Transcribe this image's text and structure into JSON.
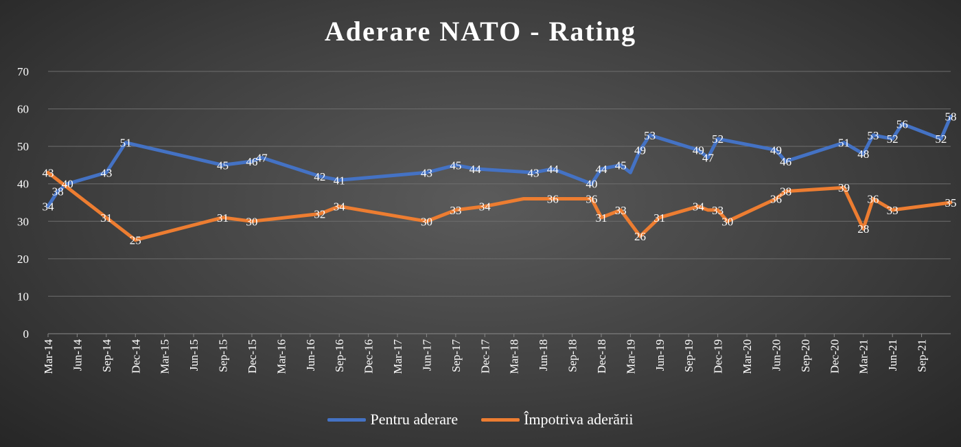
{
  "chart_data": {
    "type": "line",
    "title": "Aderare NATO - Rating",
    "xlabel": "",
    "ylabel": "",
    "ylim": [
      0,
      70
    ],
    "yticks": [
      0,
      10,
      20,
      30,
      40,
      50,
      60,
      70
    ],
    "grid": true,
    "legend_position": "bottom",
    "x_tick_labels": [
      "Mar-14",
      "Jun-14",
      "Sep-14",
      "Dec-14",
      "Mar-15",
      "Jun-15",
      "Sep-15",
      "Dec-15",
      "Mar-16",
      "Jun-16",
      "Sep-16",
      "Dec-16",
      "Mar-17",
      "Jun-17",
      "Sep-17",
      "Dec-17",
      "Mar-18",
      "Jun-18",
      "Sep-18",
      "Dec-18",
      "Mar-19",
      "Jun-19",
      "Sep-19",
      "Dec-19",
      "Mar-20",
      "Jun-20",
      "Sep-20",
      "Dec-20",
      "Mar-21",
      "Jun-21",
      "Sep-21"
    ],
    "x_range": [
      "2014-03",
      "2021-12"
    ],
    "series": [
      {
        "name": "Pentru aderare",
        "color": "#4472c4",
        "points": [
          {
            "x": "2014-03",
            "y": 34,
            "label": "34"
          },
          {
            "x": "2014-04",
            "y": 38,
            "label": "38"
          },
          {
            "x": "2014-05",
            "y": 40,
            "label": "40"
          },
          {
            "x": "2014-09",
            "y": 43,
            "label": "43"
          },
          {
            "x": "2014-11",
            "y": 51,
            "label": "51"
          },
          {
            "x": "2015-09",
            "y": 45,
            "label": "45"
          },
          {
            "x": "2015-12",
            "y": 46,
            "label": "46"
          },
          {
            "x": "2016-01",
            "y": 47,
            "label": "47"
          },
          {
            "x": "2016-07",
            "y": 42,
            "label": "42"
          },
          {
            "x": "2016-09",
            "y": 41,
            "label": "41"
          },
          {
            "x": "2017-06",
            "y": 43,
            "label": "43"
          },
          {
            "x": "2017-09",
            "y": 45,
            "label": "45"
          },
          {
            "x": "2017-11",
            "y": 44,
            "label": "44"
          },
          {
            "x": "2018-05",
            "y": 43,
            "label": "43"
          },
          {
            "x": "2018-07",
            "y": 44,
            "label": "44"
          },
          {
            "x": "2018-11",
            "y": 40,
            "label": "40"
          },
          {
            "x": "2018-12",
            "y": 44,
            "label": "44"
          },
          {
            "x": "2019-02",
            "y": 45,
            "label": "45"
          },
          {
            "x": "2019-03",
            "y": 43,
            "label": ""
          },
          {
            "x": "2019-04",
            "y": 49,
            "label": "49"
          },
          {
            "x": "2019-05",
            "y": 53,
            "label": "53"
          },
          {
            "x": "2019-10",
            "y": 49,
            "label": "49"
          },
          {
            "x": "2019-11",
            "y": 47,
            "label": "47"
          },
          {
            "x": "2019-12",
            "y": 52,
            "label": "52"
          },
          {
            "x": "2020-06",
            "y": 49,
            "label": "49"
          },
          {
            "x": "2020-07",
            "y": 46,
            "label": "46"
          },
          {
            "x": "2021-01",
            "y": 51,
            "label": "51"
          },
          {
            "x": "2021-03",
            "y": 48,
            "label": "48"
          },
          {
            "x": "2021-04",
            "y": 53,
            "label": "53"
          },
          {
            "x": "2021-06",
            "y": 52,
            "label": "52"
          },
          {
            "x": "2021-07",
            "y": 56,
            "label": "56"
          },
          {
            "x": "2021-11",
            "y": 52,
            "label": "52"
          },
          {
            "x": "2021-12",
            "y": 58,
            "label": "58"
          }
        ]
      },
      {
        "name": "Împotriva aderării",
        "color": "#ed7d31",
        "points": [
          {
            "x": "2014-03",
            "y": 43,
            "label": "43"
          },
          {
            "x": "2014-09",
            "y": 31,
            "label": "31"
          },
          {
            "x": "2014-12",
            "y": 25,
            "label": "25"
          },
          {
            "x": "2015-09",
            "y": 31,
            "label": "31"
          },
          {
            "x": "2015-12",
            "y": 30,
            "label": "30"
          },
          {
            "x": "2016-07",
            "y": 32,
            "label": "32"
          },
          {
            "x": "2016-09",
            "y": 34,
            "label": "34"
          },
          {
            "x": "2017-06",
            "y": 30,
            "label": "30"
          },
          {
            "x": "2017-09",
            "y": 33,
            "label": "33"
          },
          {
            "x": "2017-12",
            "y": 34,
            "label": "34"
          },
          {
            "x": "2018-04",
            "y": 36,
            "label": ""
          },
          {
            "x": "2018-07",
            "y": 36,
            "label": "36"
          },
          {
            "x": "2018-11",
            "y": 36,
            "label": "36"
          },
          {
            "x": "2018-12",
            "y": 31,
            "label": "31"
          },
          {
            "x": "2019-02",
            "y": 33,
            "label": "33"
          },
          {
            "x": "2019-04",
            "y": 26,
            "label": "26"
          },
          {
            "x": "2019-06",
            "y": 31,
            "label": "31"
          },
          {
            "x": "2019-10",
            "y": 34,
            "label": "34"
          },
          {
            "x": "2019-11",
            "y": 33,
            "label": ""
          },
          {
            "x": "2019-12",
            "y": 33,
            "label": "33"
          },
          {
            "x": "2020-01",
            "y": 30,
            "label": "30"
          },
          {
            "x": "2020-06",
            "y": 36,
            "label": "36"
          },
          {
            "x": "2020-07",
            "y": 38,
            "label": "38"
          },
          {
            "x": "2021-01",
            "y": 39,
            "label": "39"
          },
          {
            "x": "2021-03",
            "y": 28,
            "label": "28"
          },
          {
            "x": "2021-04",
            "y": 36,
            "label": "36"
          },
          {
            "x": "2021-06",
            "y": 33,
            "label": "33"
          },
          {
            "x": "2021-12",
            "y": 35,
            "label": "35"
          }
        ]
      }
    ]
  }
}
